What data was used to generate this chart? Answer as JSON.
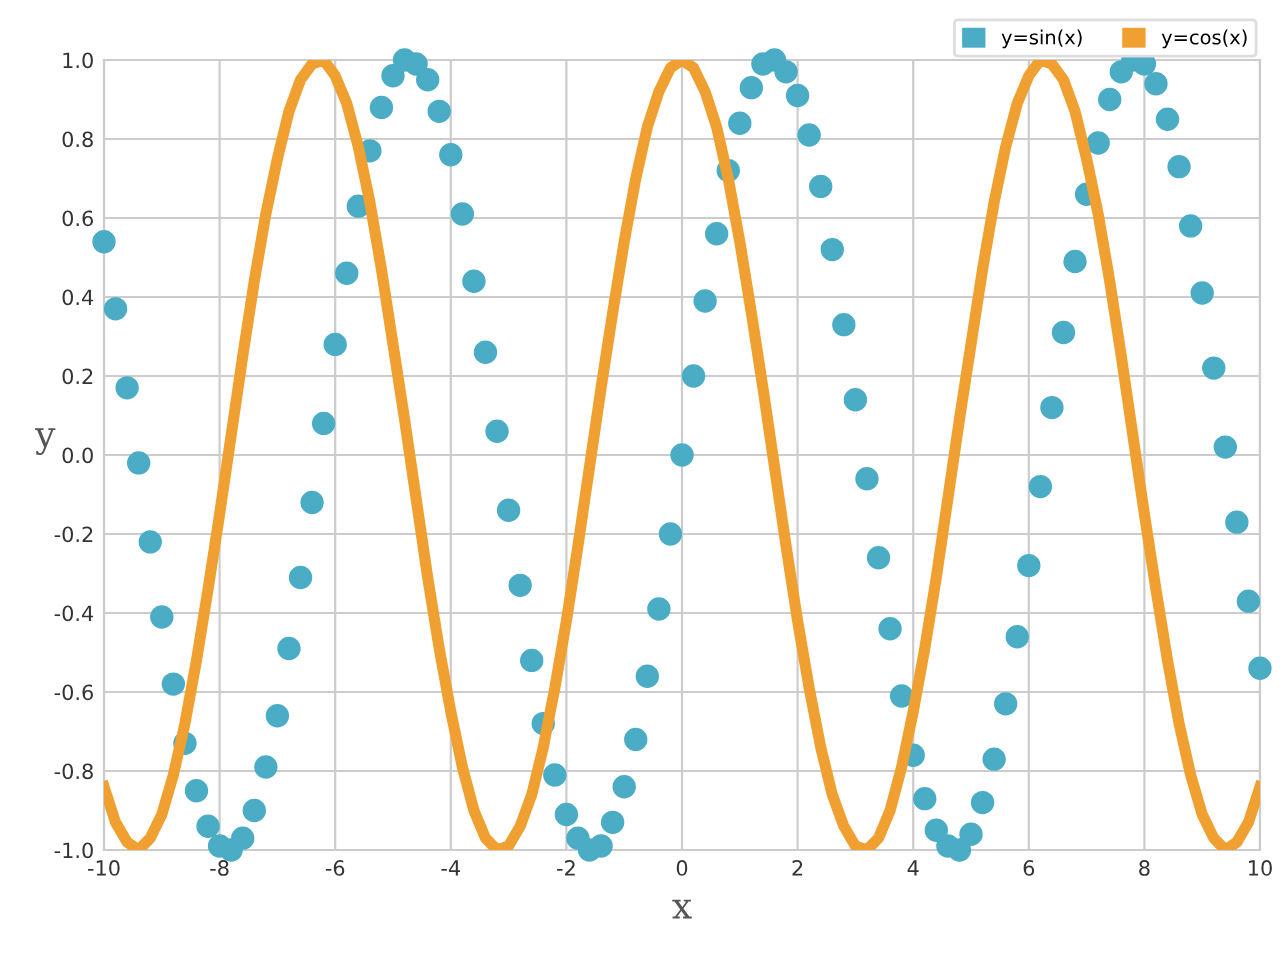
{
  "chart_data": {
    "type": "scatter",
    "xlabel": "x",
    "ylabel": "y",
    "x": [
      -10,
      -9.8,
      -9.6,
      -9.4,
      -9.2,
      -9,
      -8.8,
      -8.6,
      -8.4,
      -8.2,
      -8,
      -7.8,
      -7.6,
      -7.4,
      -7.2,
      -7,
      -6.8,
      -6.6,
      -6.4,
      -6.2,
      -6,
      -5.8,
      -5.6,
      -5.4,
      -5.2,
      -5,
      -4.8,
      -4.6,
      -4.4,
      -4.2,
      -4,
      -3.8,
      -3.6,
      -3.4,
      -3.2,
      -3,
      -2.8,
      -2.6,
      -2.4,
      -2.2,
      -2,
      -1.8,
      -1.6,
      -1.4,
      -1.2,
      -1,
      -0.8,
      -0.6,
      -0.4,
      -0.2,
      0,
      0.2,
      0.4,
      0.6,
      0.8,
      1,
      1.2,
      1.4,
      1.6,
      1.8,
      2,
      2.2,
      2.4,
      2.6,
      2.8,
      3,
      3.2,
      3.4,
      3.6,
      3.8,
      4,
      4.2,
      4.4,
      4.6,
      4.8,
      5,
      5.2,
      5.4,
      5.6,
      5.8,
      6,
      6.2,
      6.4,
      6.6,
      6.8,
      7,
      7.2,
      7.4,
      7.6,
      7.8,
      8,
      8.2,
      8.4,
      8.6,
      8.8,
      9,
      9.2,
      9.4,
      9.6,
      9.8,
      10
    ],
    "series": [
      {
        "name": "y=sin(x)",
        "type": "scatter",
        "marker": "circle",
        "color": "#4aacc5",
        "values": [
          0.54,
          0.37,
          0.17,
          -0.02,
          -0.22,
          -0.41,
          -0.58,
          -0.73,
          -0.85,
          -0.94,
          -0.99,
          -1.0,
          -0.97,
          -0.9,
          -0.79,
          -0.66,
          -0.49,
          -0.31,
          -0.12,
          0.08,
          0.28,
          0.46,
          0.63,
          0.77,
          0.88,
          0.96,
          1.0,
          0.99,
          0.95,
          0.87,
          0.76,
          0.61,
          0.44,
          0.26,
          0.06,
          -0.14,
          -0.33,
          -0.52,
          -0.68,
          -0.81,
          -0.91,
          -0.97,
          -1.0,
          -0.99,
          -0.93,
          -0.84,
          -0.72,
          -0.56,
          -0.39,
          -0.2,
          0,
          0.2,
          0.39,
          0.56,
          0.72,
          0.84,
          0.93,
          0.99,
          1.0,
          0.97,
          0.91,
          0.81,
          0.68,
          0.52,
          0.33,
          0.14,
          -0.06,
          -0.26,
          -0.44,
          -0.61,
          -0.76,
          -0.87,
          -0.95,
          -0.99,
          -1.0,
          -0.96,
          -0.88,
          -0.77,
          -0.63,
          -0.46,
          -0.28,
          -0.08,
          0.12,
          0.31,
          0.49,
          0.66,
          0.79,
          0.9,
          0.97,
          1.0,
          0.99,
          0.94,
          0.85,
          0.73,
          0.58,
          0.41,
          0.22,
          0.02,
          -0.17,
          -0.37,
          -0.54
        ]
      },
      {
        "name": "y=cos(x)",
        "type": "line",
        "marker": "none",
        "color": "#f0a030",
        "values": [
          -0.84,
          -0.93,
          -0.98,
          -1.0,
          -0.97,
          -0.91,
          -0.81,
          -0.68,
          -0.52,
          -0.34,
          -0.15,
          0.05,
          0.25,
          0.44,
          0.61,
          0.75,
          0.87,
          0.95,
          0.99,
          1.0,
          0.96,
          0.89,
          0.78,
          0.64,
          0.47,
          0.28,
          0.09,
          -0.11,
          -0.31,
          -0.49,
          -0.65,
          -0.79,
          -0.9,
          -0.97,
          -1.0,
          -0.99,
          -0.94,
          -0.86,
          -0.74,
          -0.59,
          -0.42,
          -0.23,
          -0.03,
          0.17,
          0.36,
          0.54,
          0.7,
          0.83,
          0.92,
          0.98,
          1.0,
          0.98,
          0.92,
          0.83,
          0.7,
          0.54,
          0.36,
          0.17,
          -0.03,
          -0.23,
          -0.42,
          -0.59,
          -0.74,
          -0.86,
          -0.94,
          -0.99,
          -1.0,
          -0.97,
          -0.9,
          -0.79,
          -0.65,
          -0.49,
          -0.31,
          -0.11,
          0.09,
          0.28,
          0.47,
          0.64,
          0.78,
          0.89,
          0.96,
          1.0,
          0.99,
          0.95,
          0.87,
          0.75,
          0.61,
          0.44,
          0.25,
          0.05,
          -0.15,
          -0.34,
          -0.52,
          -0.68,
          -0.81,
          -0.91,
          -0.97,
          -1.0,
          -0.98,
          -0.93,
          -0.84
        ]
      }
    ],
    "xlim": [
      -10,
      10
    ],
    "xticks": [
      -10,
      -8,
      -6,
      -4,
      -2,
      0,
      2,
      4,
      6,
      8,
      10
    ],
    "ylim": [
      -1,
      1
    ],
    "yticks": [
      {
        "value": -1,
        "label": "-1.0"
      },
      {
        "value": -0.8,
        "label": "-0.8"
      },
      {
        "value": -0.6,
        "label": "-0.6"
      },
      {
        "value": -0.4,
        "label": "-0.4"
      },
      {
        "value": -0.2,
        "label": "-0.2"
      },
      {
        "value": 0,
        "label": "0.0"
      },
      {
        "value": 0.2,
        "label": "0.2"
      },
      {
        "value": 0.4,
        "label": "0.4"
      },
      {
        "value": 0.6,
        "label": "0.6"
      },
      {
        "value": 0.8,
        "label": "0.8"
      },
      {
        "value": 1,
        "label": "1.0"
      }
    ],
    "grid": true,
    "legend": "top right"
  }
}
